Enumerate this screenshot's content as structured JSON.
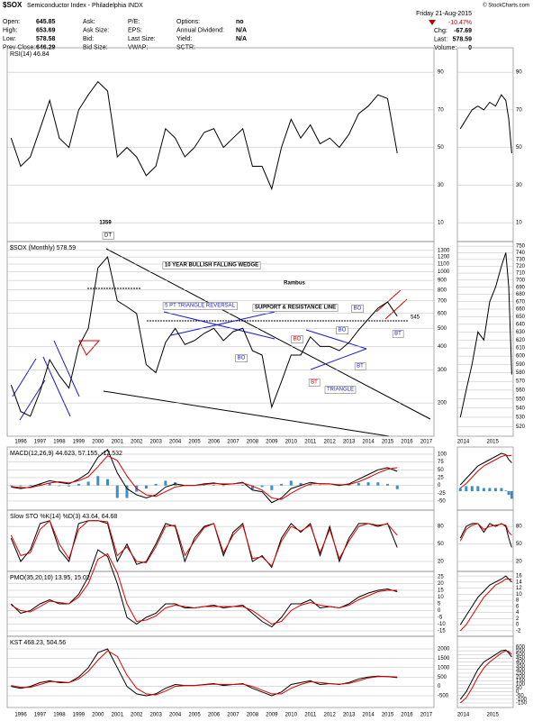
{
  "header": {
    "symbol": "$SOX",
    "name": "Semiconductor Index - Philadelphia INDX",
    "credit": "© StockCharts.com",
    "date": "Friday  21-Aug-2015",
    "change_pct": "-10.47%",
    "columns": [
      [
        {
          "label": "Open:",
          "value": "645.85"
        },
        {
          "label": "High:",
          "value": "653.69"
        },
        {
          "label": "Low:",
          "value": "578.58"
        },
        {
          "label": "Prev Close:",
          "value": "646.29"
        }
      ],
      [
        {
          "label": "Ask:"
        },
        {
          "label": "Ask Size:"
        },
        {
          "label": "Bid:"
        },
        {
          "label": "Bid Size:"
        }
      ],
      [
        {
          "label": "P/E:"
        },
        {
          "label": "EPS:"
        },
        {
          "label": "Last Size:"
        },
        {
          "label": "VWAP:"
        }
      ],
      [
        {
          "label": "Options:",
          "value": "no"
        },
        {
          "label": "Annual Dividend:",
          "value": "N/A"
        },
        {
          "label": "Yield:",
          "value": "N/A"
        },
        {
          "label": "SCTR:"
        }
      ],
      [
        {
          "label": "Chg:",
          "value": "-67.69"
        },
        {
          "label": "Last:",
          "value": "578.59"
        },
        {
          "label": "Volume:",
          "value": "0"
        }
      ]
    ]
  },
  "chart_data": {
    "type": "line",
    "x": [
      1995.5,
      1996,
      1996.5,
      1997,
      1997.5,
      1998,
      1998.5,
      1999,
      1999.5,
      2000,
      2000.5,
      2001,
      2001.5,
      2002,
      2002.5,
      2003,
      2003.5,
      2004,
      2004.5,
      2005,
      2005.5,
      2006,
      2006.5,
      2007,
      2007.5,
      2008,
      2008.5,
      2009,
      2009.5,
      2010,
      2010.5,
      2011,
      2011.5,
      2012,
      2012.5,
      2013,
      2013.5,
      2014,
      2014.5,
      2015,
      2015.5
    ],
    "xlim": [
      1995.3,
      2017.4
    ],
    "xticks": [
      1996,
      1997,
      1998,
      1999,
      2000,
      2001,
      2002,
      2003,
      2004,
      2005,
      2006,
      2007,
      2008,
      2009,
      2010,
      2011,
      2012,
      2013,
      2014,
      2015,
      2016,
      2017
    ],
    "mini_x": [
      2013.9,
      2014.1,
      2014.3,
      2014.5,
      2014.7,
      2014.9,
      2015.1,
      2015.3,
      2015.45,
      2015.55,
      2015.65
    ],
    "mini_xlim": [
      2013.8,
      2015.7
    ],
    "mini_xticks": [
      2014,
      2015
    ],
    "panels": [
      {
        "label": "RSI(14) 46.84",
        "ylim": [
          0,
          103
        ],
        "yticks": [
          90,
          70,
          50,
          30,
          10
        ],
        "series": [
          {
            "color": "#000000",
            "values": [
              55,
              40,
              45,
              60,
              75,
              55,
              50,
              70,
              78,
              85,
              80,
              45,
              50,
              45,
              35,
              40,
              60,
              55,
              45,
              50,
              58,
              60,
              50,
              55,
              60,
              40,
              40,
              28,
              50,
              65,
              55,
              62,
              52,
              55,
              50,
              57,
              68,
              72,
              78,
              76,
              47
            ]
          }
        ],
        "mini": {
          "ylim": [
            0,
            103
          ],
          "yticks": [
            90,
            70,
            50,
            30,
            10
          ],
          "series": [
            {
              "color": "#000000",
              "values": [
                60,
                65,
                70,
                72,
                70,
                74,
                72,
                78,
                75,
                65,
                47
              ]
            }
          ]
        }
      },
      {
        "label": "$SOX (Monthly) 578.59",
        "log": true,
        "ylim": [
          133,
          1450
        ],
        "yticks": [
          200,
          300,
          400,
          500,
          600,
          700,
          800,
          900,
          1000,
          1100,
          1200,
          1300
        ],
        "series": [
          {
            "color": "#000000",
            "values": [
              250,
              180,
              170,
              230,
              340,
              280,
              240,
              400,
              500,
              1050,
              1200,
              700,
              650,
              600,
              320,
              290,
              420,
              500,
              410,
              430,
              470,
              500,
              430,
              480,
              500,
              380,
              360,
              190,
              260,
              360,
              360,
              450,
              400,
              400,
              380,
              420,
              490,
              560,
              640,
              690,
              580
            ]
          }
        ],
        "annotations": [
          "1359",
          "DT",
          "10 YEAR BULLISH FALLING WEDGE",
          "Rambus",
          "5 PT TRIANGLE REVERSAL",
          "SUPPORT & RESISTANCE LINE",
          "BO",
          "BO",
          "BT",
          "BT",
          "BO",
          "BO",
          "BT",
          "TRIANGLE",
          "545"
        ],
        "mini": {
          "ylim": [
            510,
            757
          ],
          "yticks": [
            520,
            530,
            540,
            550,
            560,
            570,
            580,
            590,
            600,
            610,
            620,
            630,
            640,
            650,
            660,
            670,
            680,
            690,
            700,
            710,
            720,
            730,
            740,
            750
          ],
          "series": [
            {
              "color": "#000000",
              "values": [
                530,
                560,
                590,
                630,
                620,
                670,
                690,
                720,
                740,
                690,
                578
              ]
            }
          ]
        }
      },
      {
        "label": "MACD(12,26,9) 44.623, 57.155, -12.532",
        "ylim": [
          -79,
          123
        ],
        "yticks": [
          100,
          75,
          50,
          25,
          0,
          -25,
          -50
        ],
        "series": [
          {
            "color": "#3b8fc4",
            "kind": "bar",
            "values": [
              -2,
              -3,
              2,
              5,
              7,
              -2,
              -3,
              5,
              12,
              30,
              20,
              -40,
              -40,
              -20,
              -10,
              5,
              15,
              10,
              0,
              0,
              2,
              2,
              -2,
              0,
              2,
              -13,
              -5,
              -15,
              5,
              15,
              8,
              5,
              -1,
              0,
              -2,
              2,
              8,
              10,
              10,
              5,
              -12
            ]
          },
          {
            "color": "#000000",
            "values": [
              -5,
              -10,
              -5,
              5,
              15,
              10,
              5,
              20,
              40,
              90,
              115,
              40,
              -10,
              -30,
              -40,
              -30,
              -5,
              5,
              0,
              0,
              5,
              8,
              3,
              5,
              10,
              -15,
              -20,
              -55,
              -40,
              -10,
              0,
              10,
              5,
              5,
              0,
              5,
              20,
              35,
              50,
              57,
              45
            ]
          },
          {
            "color": "#e00000",
            "values": [
              -3,
              -7,
              -7,
              0,
              8,
              12,
              8,
              15,
              28,
              60,
              95,
              80,
              30,
              -10,
              -30,
              -35,
              -20,
              -5,
              0,
              0,
              3,
              6,
              5,
              5,
              8,
              -2,
              -15,
              -40,
              -45,
              -25,
              -8,
              5,
              6,
              5,
              2,
              3,
              12,
              25,
              40,
              52,
              57
            ]
          }
        ],
        "mini": {
          "ylim": [
            -30,
            70
          ],
          "series": [
            {
              "color": "#3b8fc4",
              "kind": "bar",
              "values": [
                5,
                8,
                8,
                8,
                5,
                5,
                5,
                5,
                1,
                -6,
                -12
              ]
            },
            {
              "color": "#000000",
              "values": [
                10,
                20,
                30,
                40,
                45,
                50,
                55,
                60,
                58,
                50,
                45
              ]
            },
            {
              "color": "#e00000",
              "values": [
                5,
                12,
                22,
                32,
                40,
                45,
                50,
                55,
                57,
                56,
                57
              ]
            }
          ]
        }
      },
      {
        "label": "Slow STO %K(14) %D(3) 43.64, 64.68",
        "ylim": [
          3,
          108
        ],
        "yticks": [
          80,
          50,
          20
        ],
        "series": [
          {
            "color": "#000000",
            "values": [
              60,
              20,
              40,
              85,
              90,
              40,
              20,
              85,
              90,
              90,
              85,
              20,
              50,
              15,
              20,
              50,
              85,
              80,
              20,
              60,
              80,
              85,
              30,
              70,
              85,
              20,
              30,
              10,
              60,
              85,
              70,
              85,
              30,
              80,
              20,
              60,
              85,
              85,
              80,
              85,
              44
            ]
          },
          {
            "color": "#e00000",
            "values": [
              65,
              30,
              35,
              75,
              90,
              50,
              25,
              75,
              90,
              90,
              88,
              30,
              45,
              20,
              18,
              45,
              80,
              82,
              30,
              55,
              78,
              85,
              35,
              65,
              82,
              25,
              28,
              12,
              55,
              80,
              72,
              82,
              35,
              75,
              25,
              55,
              80,
              85,
              82,
              84,
              65
            ]
          }
        ],
        "mini": {
          "ylim": [
            3,
            108
          ],
          "yticks": [
            80,
            50,
            20
          ],
          "series": [
            {
              "color": "#000000",
              "values": [
                60,
                80,
                85,
                85,
                70,
                85,
                80,
                85,
                80,
                60,
                44
              ]
            },
            {
              "color": "#e00000",
              "values": [
                55,
                75,
                82,
                85,
                75,
                80,
                82,
                84,
                82,
                70,
                65
              ]
            }
          ]
        }
      },
      {
        "label": "PMO(35,20,10) 13.95, 15.02",
        "ylim": [
          -19,
          29
        ],
        "yticks": [
          25,
          20,
          15,
          10,
          5,
          0,
          -5,
          -10,
          -15
        ],
        "series": [
          {
            "color": "#000000",
            "values": [
              5,
              -2,
              0,
              5,
              8,
              5,
              5,
              12,
              25,
              45,
              40,
              20,
              -5,
              -10,
              -5,
              -2,
              5,
              5,
              2,
              2,
              3,
              4,
              2,
              3,
              4,
              -2,
              -8,
              -12,
              -5,
              5,
              5,
              8,
              2,
              3,
              2,
              5,
              10,
              13,
              15,
              16,
              14
            ]
          },
          {
            "color": "#e00000",
            "values": [
              4,
              0,
              -1,
              3,
              7,
              6,
              5,
              10,
              20,
              38,
              42,
              28,
              5,
              -8,
              -7,
              -4,
              2,
              4,
              3,
              2,
              3,
              3,
              3,
              3,
              3,
              0,
              -5,
              -10,
              -8,
              0,
              4,
              6,
              4,
              3,
              2,
              4,
              8,
              11,
              14,
              15,
              15
            ]
          }
        ],
        "mini": {
          "ylim": [
            -3.8,
            17.5
          ],
          "yticks": [
            16,
            14,
            12,
            10,
            8,
            6,
            4,
            2,
            0,
            -2
          ],
          "series": [
            {
              "color": "#000000",
              "values": [
                0,
                3,
                6,
                9,
                11,
                13,
                14,
                15,
                16,
                15,
                14
              ]
            },
            {
              "color": "#e00000",
              "values": [
                -2,
                0,
                3,
                6,
                9,
                11,
                13,
                14,
                15,
                15,
                15
              ]
            }
          ]
        }
      },
      {
        "label": "KST 468.23, 504.56",
        "ylim": [
          -1125,
          2673
        ],
        "yticks": [
          2000,
          1500,
          1000,
          500,
          0,
          -500
        ],
        "series": [
          {
            "color": "#000000",
            "values": [
              0,
              -100,
              0,
              200,
              300,
              200,
              200,
              500,
              1000,
              1800,
              2000,
              1000,
              0,
              -400,
              -500,
              -400,
              -100,
              100,
              50,
              50,
              100,
              150,
              50,
              100,
              150,
              -100,
              -300,
              -500,
              -300,
              100,
              200,
              300,
              100,
              150,
              100,
              200,
              400,
              500,
              550,
              520,
              468
            ]
          },
          {
            "color": "#e00000",
            "values": [
              50,
              -50,
              -50,
              100,
              250,
              250,
              200,
              400,
              800,
              1400,
              1900,
              1600,
              600,
              -100,
              -400,
              -450,
              -250,
              0,
              50,
              50,
              80,
              120,
              100,
              100,
              120,
              0,
              -200,
              -400,
              -400,
              -100,
              100,
              250,
              200,
              150,
              120,
              160,
              300,
              450,
              520,
              530,
              505
            ]
          }
        ],
        "mini": {
          "ylim": [
            -210,
            745
          ],
          "yticks": [
            600,
            550,
            500,
            450,
            400,
            350,
            300,
            250,
            200,
            150,
            100,
            50,
            0,
            -50,
            -100,
            -150
          ],
          "series": [
            {
              "color": "#000000",
              "values": [
                -100,
                0,
                150,
                300,
                400,
                450,
                500,
                550,
                560,
                520,
                468
              ]
            },
            {
              "color": "#e00000",
              "values": [
                -150,
                -80,
                50,
                200,
                320,
                400,
                460,
                520,
                550,
                540,
                505
              ]
            }
          ]
        }
      }
    ]
  }
}
